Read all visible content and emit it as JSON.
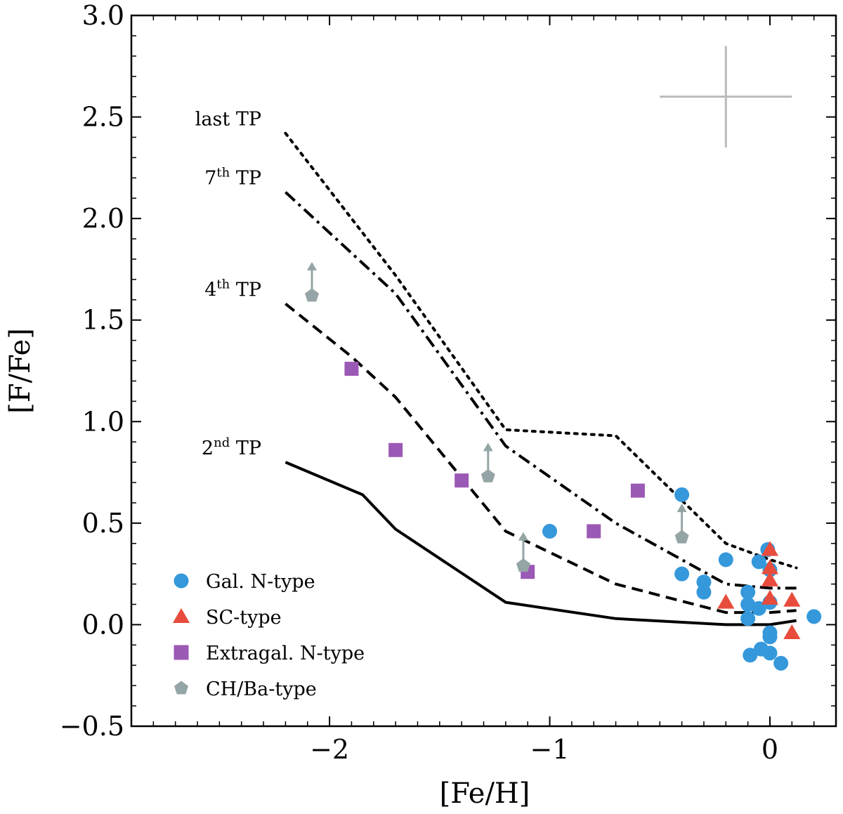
{
  "chart_data": {
    "type": "scatter",
    "xlabel": "[Fe/H]",
    "ylabel": "[F/Fe]",
    "xlim": [
      -2.9,
      0.3
    ],
    "ylim": [
      -0.5,
      3.0
    ],
    "x_ticks": [
      -2,
      -1,
      0
    ],
    "x_tick_labels": [
      "−2",
      "−1",
      "0"
    ],
    "y_ticks": [
      -0.5,
      0.0,
      0.5,
      1.0,
      1.5,
      2.0,
      2.5,
      3.0
    ],
    "y_tick_labels": [
      "−0.5",
      "0.0",
      "0.5",
      "1.0",
      "1.5",
      "2.0",
      "2.5",
      "3.0"
    ],
    "error_bar": {
      "x": -0.2,
      "y": 2.6,
      "xerr": 0.3,
      "yerr": 0.25,
      "color": "#bbbbbb"
    },
    "model_lines": [
      {
        "name": "2nd TP",
        "base": "2",
        "sup": "nd",
        "suffix": " TP",
        "dash": "solid",
        "x": [
          -2.2,
          -1.85,
          -1.7,
          -1.2,
          -0.7,
          -0.2,
          0.0,
          0.12
        ],
        "y": [
          0.8,
          0.64,
          0.47,
          0.11,
          0.03,
          0.0,
          0.0,
          0.02
        ]
      },
      {
        "name": "4th TP",
        "base": "4",
        "sup": "th",
        "suffix": " TP",
        "dash": "dashed",
        "x": [
          -2.2,
          -1.9,
          -1.7,
          -1.2,
          -0.7,
          -0.2,
          0.0,
          0.12
        ],
        "y": [
          1.58,
          1.32,
          1.12,
          0.46,
          0.2,
          0.06,
          0.06,
          0.07
        ]
      },
      {
        "name": "7th TP",
        "base": "7",
        "sup": "th",
        "suffix": " TP",
        "dash": "dashdot",
        "x": [
          -2.2,
          -1.7,
          -1.2,
          -0.7,
          -0.2,
          0.0,
          0.12
        ],
        "y": [
          2.13,
          1.63,
          0.88,
          0.5,
          0.2,
          0.18,
          0.18
        ]
      },
      {
        "name": "last TP",
        "base": "last",
        "sup": "",
        "suffix": " TP",
        "dash": "dotted",
        "x": [
          -2.2,
          -1.7,
          -1.2,
          -0.7,
          -0.2,
          0.0,
          0.12
        ],
        "y": [
          2.42,
          1.72,
          0.96,
          0.93,
          0.4,
          0.32,
          0.28
        ]
      }
    ],
    "series": [
      {
        "name": "Gal. N-type",
        "marker": "circle",
        "color": "#3598db",
        "points": [
          [
            -1.0,
            0.46
          ],
          [
            -0.4,
            0.64
          ],
          [
            -0.4,
            0.25
          ],
          [
            -0.3,
            0.21
          ],
          [
            -0.3,
            0.16
          ],
          [
            -0.2,
            0.32
          ],
          [
            -0.05,
            0.31
          ],
          [
            -0.01,
            0.37
          ],
          [
            0.0,
            0.27
          ],
          [
            0.0,
            0.11
          ],
          [
            -0.1,
            0.16
          ],
          [
            -0.1,
            0.1
          ],
          [
            -0.1,
            0.03
          ],
          [
            -0.05,
            0.08
          ],
          [
            0.0,
            -0.04
          ],
          [
            0.0,
            -0.06
          ],
          [
            -0.09,
            -0.15
          ],
          [
            -0.04,
            -0.12
          ],
          [
            0.0,
            -0.14
          ],
          [
            0.05,
            -0.19
          ],
          [
            0.2,
            0.04
          ]
        ]
      },
      {
        "name": "SC-type",
        "marker": "triangle",
        "color": "#e74c3c",
        "points": [
          [
            -0.2,
            0.11
          ],
          [
            0.0,
            0.37
          ],
          [
            0.0,
            0.28
          ],
          [
            0.0,
            0.22
          ],
          [
            0.0,
            0.13
          ],
          [
            0.1,
            0.12
          ],
          [
            0.1,
            -0.04
          ]
        ]
      },
      {
        "name": "Extragal. N-type",
        "marker": "square",
        "color": "#9b59b6",
        "points": [
          [
            -1.9,
            1.26
          ],
          [
            -1.7,
            0.86
          ],
          [
            -1.4,
            0.71
          ],
          [
            -1.1,
            0.26
          ],
          [
            -0.8,
            0.46
          ],
          [
            -0.6,
            0.66
          ]
        ]
      },
      {
        "name": "CH/Ba-type",
        "marker": "pentagon",
        "color": "#95a5a6",
        "lower_limit": true,
        "points": [
          [
            -2.08,
            1.62
          ],
          [
            -1.28,
            0.73
          ],
          [
            -1.12,
            0.29
          ],
          [
            -0.4,
            0.43
          ]
        ]
      }
    ],
    "legend_position": "lower-left"
  }
}
